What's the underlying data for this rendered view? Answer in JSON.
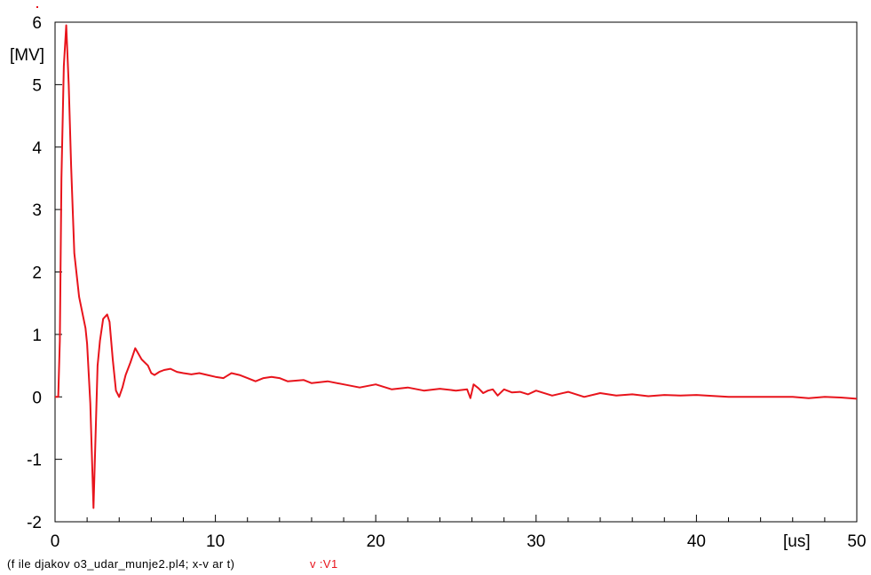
{
  "chart_data": {
    "type": "line",
    "title": "",
    "xlabel": "",
    "ylabel": "",
    "x_unit": "[us]",
    "y_unit": "[MV]",
    "xlim": [
      0,
      50
    ],
    "ylim": [
      -2,
      6
    ],
    "x_ticks": [
      "0",
      "10",
      "20",
      "30",
      "40",
      "50"
    ],
    "y_ticks": [
      "-2",
      "-1",
      "0",
      "1",
      "2",
      "3",
      "4",
      "5",
      "6"
    ],
    "grid": false,
    "series": [
      {
        "name": "v:V1",
        "color": "#e8141c",
        "x": [
          0,
          0.2,
          0.3,
          0.4,
          0.55,
          0.7,
          0.85,
          1.0,
          1.2,
          1.5,
          1.9,
          2.0,
          2.2,
          2.4,
          2.65,
          2.8,
          3.0,
          3.25,
          3.4,
          3.6,
          3.8,
          4.0,
          4.2,
          4.4,
          4.7,
          5.0,
          5.4,
          5.8,
          6.0,
          6.2,
          6.5,
          6.8,
          7.2,
          7.6,
          8.0,
          8.5,
          9.0,
          9.5,
          10.0,
          10.5,
          11.0,
          11.5,
          12.0,
          12.5,
          13.0,
          13.5,
          14.0,
          14.5,
          15.0,
          15.5,
          16.0,
          17.0,
          18.0,
          19.0,
          20.0,
          21.0,
          22.0,
          23.0,
          24.0,
          25.0,
          25.7,
          25.9,
          26.1,
          26.4,
          26.7,
          27.0,
          27.3,
          27.6,
          28.0,
          28.5,
          29.0,
          29.5,
          30.0,
          31.0,
          32.0,
          33.0,
          34.0,
          35.0,
          36.0,
          37.0,
          38.0,
          39.0,
          40.0,
          42.0,
          44.0,
          46.0,
          47.0,
          48.0,
          49.0,
          50.0
        ],
        "y": [
          0,
          0,
          0.9,
          3.5,
          5.3,
          5.95,
          5.0,
          3.7,
          2.3,
          1.6,
          1.1,
          0.85,
          -0.1,
          -1.78,
          0.5,
          0.9,
          1.25,
          1.32,
          1.2,
          0.6,
          0.1,
          0.0,
          0.15,
          0.35,
          0.55,
          0.78,
          0.6,
          0.5,
          0.38,
          0.35,
          0.4,
          0.43,
          0.45,
          0.4,
          0.38,
          0.36,
          0.38,
          0.35,
          0.32,
          0.3,
          0.38,
          0.35,
          0.3,
          0.25,
          0.3,
          0.32,
          0.3,
          0.25,
          0.26,
          0.27,
          0.22,
          0.25,
          0.2,
          0.15,
          0.2,
          0.12,
          0.15,
          0.1,
          0.13,
          0.1,
          0.12,
          -0.02,
          0.2,
          0.14,
          0.06,
          0.1,
          0.12,
          0.02,
          0.12,
          0.07,
          0.08,
          0.04,
          0.1,
          0.02,
          0.08,
          0.0,
          0.06,
          0.02,
          0.04,
          0.01,
          0.03,
          0.02,
          0.03,
          0.0,
          0.0,
          0.0,
          -0.02,
          0.0,
          -0.01,
          -0.03
        ]
      }
    ]
  },
  "footer": {
    "file_text": "(f ile djakov o3_udar_munje2.pl4; x-v ar t)",
    "variable_text": "v :V1"
  },
  "colors": {
    "series": "#e8141c",
    "axes": "#000000",
    "background": "#ffffff"
  }
}
